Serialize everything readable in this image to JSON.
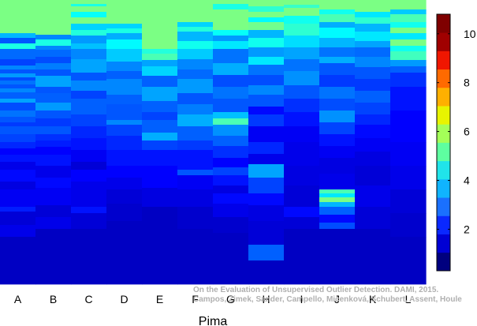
{
  "chart_data": {
    "type": "heatmap",
    "xlabel": "Pima",
    "columns": [
      "A",
      "B",
      "C",
      "D",
      "E",
      "F",
      "G",
      "H",
      "I",
      "J",
      "K",
      "L"
    ],
    "value_range": [
      0.3,
      10.8
    ],
    "colorbar": {
      "ticks": [
        2,
        4,
        6,
        8,
        10
      ],
      "colors": [
        "#00007f",
        "#0000d4",
        "#0a28ff",
        "#1a70ff",
        "#10b4ff",
        "#20e4ea",
        "#5effa0",
        "#a4ff58",
        "#e8f400",
        "#ffb000",
        "#ff6a00",
        "#f01600",
        "#a00000",
        "#7f0000"
      ]
    },
    "columns_data": [
      [
        [
          0,
          42,
          5.5
        ],
        [
          42,
          48,
          3.5
        ],
        [
          48,
          55,
          2.5
        ],
        [
          55,
          62,
          4.5
        ],
        [
          62,
          75,
          2.7
        ],
        [
          75,
          83,
          2.3
        ],
        [
          83,
          88,
          3.0
        ],
        [
          88,
          93,
          2.5
        ],
        [
          93,
          98,
          3.2
        ],
        [
          98,
          102,
          2.4
        ],
        [
          102,
          107,
          2.8
        ],
        [
          107,
          112,
          2.5
        ],
        [
          112,
          117,
          3.0
        ],
        [
          117,
          125,
          2.6
        ],
        [
          125,
          130,
          3.3
        ],
        [
          130,
          140,
          2.4
        ],
        [
          140,
          148,
          2.8
        ],
        [
          148,
          155,
          2.5
        ],
        [
          155,
          160,
          2.2
        ],
        [
          160,
          170,
          2.5
        ],
        [
          170,
          180,
          2.3
        ],
        [
          180,
          188,
          2.0
        ],
        [
          188,
          196,
          1.6
        ],
        [
          196,
          205,
          1.8
        ],
        [
          205,
          215,
          1.4
        ],
        [
          215,
          230,
          1.7
        ],
        [
          230,
          240,
          1.3
        ],
        [
          240,
          262,
          1.5
        ],
        [
          262,
          268,
          1.9
        ],
        [
          268,
          285,
          1.2
        ],
        [
          285,
          300,
          1.4
        ],
        [
          300,
          360,
          1.0
        ]
      ],
      [
        [
          0,
          44,
          5.5
        ],
        [
          44,
          50,
          3.0
        ],
        [
          50,
          58,
          4.5
        ],
        [
          58,
          63,
          3.0
        ],
        [
          63,
          72,
          2.7
        ],
        [
          72,
          80,
          2.4
        ],
        [
          80,
          88,
          2.9
        ],
        [
          88,
          96,
          2.5
        ],
        [
          96,
          110,
          3.3
        ],
        [
          110,
          118,
          2.5
        ],
        [
          118,
          130,
          2.6
        ],
        [
          130,
          140,
          3.2
        ],
        [
          140,
          150,
          2.5
        ],
        [
          150,
          160,
          2.2
        ],
        [
          160,
          170,
          2.5
        ],
        [
          170,
          178,
          2.1
        ],
        [
          178,
          186,
          1.9
        ],
        [
          186,
          196,
          1.6
        ],
        [
          196,
          210,
          1.8
        ],
        [
          210,
          225,
          1.4
        ],
        [
          225,
          238,
          1.7
        ],
        [
          238,
          260,
          1.5
        ],
        [
          260,
          275,
          1.2
        ],
        [
          275,
          290,
          1.4
        ],
        [
          290,
          360,
          1.0
        ]
      ],
      [
        [
          0,
          5,
          5.5
        ],
        [
          5,
          8,
          4.5
        ],
        [
          8,
          15,
          5.5
        ],
        [
          15,
          22,
          4.3
        ],
        [
          22,
          30,
          5.5
        ],
        [
          30,
          38,
          3.8
        ],
        [
          38,
          45,
          4.6
        ],
        [
          45,
          55,
          3.2
        ],
        [
          55,
          62,
          3.6
        ],
        [
          62,
          75,
          3.0
        ],
        [
          75,
          92,
          3.3
        ],
        [
          92,
          102,
          2.5
        ],
        [
          102,
          115,
          3.0
        ],
        [
          115,
          125,
          2.3
        ],
        [
          125,
          145,
          2.6
        ],
        [
          145,
          160,
          2.3
        ],
        [
          160,
          175,
          2.0
        ],
        [
          175,
          190,
          1.8
        ],
        [
          190,
          205,
          1.5
        ],
        [
          205,
          215,
          1.2
        ],
        [
          215,
          230,
          1.6
        ],
        [
          230,
          262,
          1.4
        ],
        [
          262,
          270,
          1.8
        ],
        [
          270,
          290,
          1.2
        ],
        [
          290,
          360,
          1.0
        ]
      ],
      [
        [
          0,
          30,
          5.5
        ],
        [
          30,
          36,
          3.8
        ],
        [
          36,
          42,
          4.5
        ],
        [
          42,
          50,
          3.4
        ],
        [
          50,
          62,
          4.2
        ],
        [
          62,
          78,
          3.7
        ],
        [
          78,
          90,
          3.0
        ],
        [
          90,
          100,
          2.6
        ],
        [
          100,
          120,
          3.0
        ],
        [
          120,
          132,
          2.6
        ],
        [
          132,
          152,
          2.5
        ],
        [
          152,
          158,
          3.0
        ],
        [
          158,
          172,
          2.3
        ],
        [
          172,
          190,
          2.0
        ],
        [
          190,
          210,
          1.8
        ],
        [
          210,
          225,
          1.6
        ],
        [
          225,
          240,
          1.4
        ],
        [
          240,
          258,
          1.2
        ],
        [
          258,
          280,
          1.1
        ],
        [
          280,
          360,
          1.0
        ]
      ],
      [
        [
          0,
          62,
          5.5
        ],
        [
          62,
          68,
          4.6
        ],
        [
          68,
          76,
          5.0
        ],
        [
          76,
          84,
          3.3
        ],
        [
          84,
          96,
          3.8
        ],
        [
          96,
          110,
          2.6
        ],
        [
          110,
          128,
          3.3
        ],
        [
          128,
          142,
          2.6
        ],
        [
          142,
          152,
          2.3
        ],
        [
          152,
          168,
          2.6
        ],
        [
          168,
          178,
          3.4
        ],
        [
          178,
          190,
          2.3
        ],
        [
          190,
          210,
          1.8
        ],
        [
          210,
          238,
          1.6
        ],
        [
          238,
          262,
          1.3
        ],
        [
          262,
          360,
          1.0
        ]
      ],
      [
        [
          0,
          28,
          5.5
        ],
        [
          28,
          34,
          3.8
        ],
        [
          34,
          40,
          4.6
        ],
        [
          40,
          52,
          3.5
        ],
        [
          52,
          62,
          4.4
        ],
        [
          62,
          75,
          3.7
        ],
        [
          75,
          88,
          3.0
        ],
        [
          88,
          100,
          2.7
        ],
        [
          100,
          118,
          3.2
        ],
        [
          118,
          132,
          2.5
        ],
        [
          132,
          145,
          2.9
        ],
        [
          145,
          160,
          3.4
        ],
        [
          160,
          178,
          2.6
        ],
        [
          178,
          190,
          2.2
        ],
        [
          190,
          215,
          1.8
        ],
        [
          215,
          222,
          2.5
        ],
        [
          222,
          240,
          1.5
        ],
        [
          240,
          262,
          1.3
        ],
        [
          262,
          290,
          1.1
        ],
        [
          290,
          360,
          1.0
        ]
      ],
      [
        [
          0,
          5,
          5.5
        ],
        [
          5,
          12,
          4.5
        ],
        [
          12,
          38,
          5.5
        ],
        [
          38,
          45,
          4.3
        ],
        [
          45,
          52,
          3.2
        ],
        [
          52,
          62,
          4.0
        ],
        [
          62,
          80,
          2.8
        ],
        [
          80,
          95,
          3.4
        ],
        [
          95,
          110,
          2.4
        ],
        [
          110,
          125,
          2.8
        ],
        [
          125,
          142,
          2.5
        ],
        [
          142,
          150,
          3.6
        ],
        [
          150,
          158,
          5.0
        ],
        [
          158,
          172,
          3.1
        ],
        [
          172,
          185,
          2.6
        ],
        [
          185,
          200,
          2.1
        ],
        [
          200,
          212,
          1.6
        ],
        [
          212,
          222,
          2.3
        ],
        [
          222,
          235,
          1.8
        ],
        [
          235,
          245,
          1.3
        ],
        [
          245,
          258,
          1.7
        ],
        [
          258,
          275,
          1.4
        ],
        [
          275,
          295,
          1.1
        ],
        [
          295,
          360,
          1.0
        ]
      ],
      [
        [
          0,
          8,
          5.5
        ],
        [
          8,
          15,
          4.7
        ],
        [
          15,
          22,
          5.5
        ],
        [
          22,
          28,
          4.2
        ],
        [
          28,
          38,
          5.4
        ],
        [
          38,
          48,
          3.5
        ],
        [
          48,
          60,
          4.4
        ],
        [
          60,
          72,
          3.2
        ],
        [
          72,
          82,
          4.0
        ],
        [
          82,
          95,
          2.8
        ],
        [
          95,
          108,
          2.4
        ],
        [
          108,
          120,
          3.0
        ],
        [
          120,
          135,
          2.5
        ],
        [
          135,
          145,
          1.7
        ],
        [
          145,
          160,
          2.2
        ],
        [
          160,
          180,
          1.5
        ],
        [
          180,
          195,
          2.0
        ],
        [
          195,
          208,
          1.4
        ],
        [
          208,
          225,
          3.3
        ],
        [
          225,
          245,
          2.3
        ],
        [
          245,
          260,
          1.7
        ],
        [
          260,
          280,
          1.3
        ],
        [
          280,
          310,
          1.2
        ],
        [
          310,
          330,
          2.6
        ],
        [
          330,
          360,
          1.0
        ]
      ],
      [
        [
          0,
          6,
          5.5
        ],
        [
          6,
          10,
          4.8
        ],
        [
          10,
          20,
          5.5
        ],
        [
          20,
          30,
          4.4
        ],
        [
          30,
          45,
          4.7
        ],
        [
          45,
          60,
          3.9
        ],
        [
          60,
          75,
          3.3
        ],
        [
          75,
          90,
          2.8
        ],
        [
          90,
          108,
          3.1
        ],
        [
          108,
          125,
          2.5
        ],
        [
          125,
          142,
          2.1
        ],
        [
          142,
          160,
          1.8
        ],
        [
          160,
          180,
          1.5
        ],
        [
          180,
          210,
          1.4
        ],
        [
          210,
          235,
          1.3
        ],
        [
          235,
          262,
          1.2
        ],
        [
          262,
          275,
          1.7
        ],
        [
          275,
          290,
          1.2
        ],
        [
          290,
          360,
          1.0
        ]
      ],
      [
        [
          0,
          12,
          5.5
        ],
        [
          12,
          18,
          4.4
        ],
        [
          18,
          28,
          5.0
        ],
        [
          28,
          35,
          3.4
        ],
        [
          35,
          48,
          4.2
        ],
        [
          48,
          60,
          3.5
        ],
        [
          60,
          72,
          2.8
        ],
        [
          72,
          80,
          3.4
        ],
        [
          80,
          95,
          2.5
        ],
        [
          95,
          110,
          2.2
        ],
        [
          110,
          125,
          2.8
        ],
        [
          125,
          140,
          2.4
        ],
        [
          140,
          155,
          3.1
        ],
        [
          155,
          170,
          2.3
        ],
        [
          170,
          185,
          1.8
        ],
        [
          185,
          200,
          1.5
        ],
        [
          200,
          220,
          1.3
        ],
        [
          220,
          240,
          1.4
        ],
        [
          240,
          245,
          5.0
        ],
        [
          245,
          250,
          4.0
        ],
        [
          250,
          256,
          5.5
        ],
        [
          256,
          262,
          3.5
        ],
        [
          262,
          272,
          2.6
        ],
        [
          272,
          282,
          1.7
        ],
        [
          282,
          290,
          2.4
        ],
        [
          290,
          360,
          1.0
        ]
      ],
      [
        [
          0,
          15,
          5.5
        ],
        [
          15,
          22,
          4.0
        ],
        [
          22,
          30,
          4.7
        ],
        [
          30,
          40,
          3.5
        ],
        [
          40,
          52,
          4.0
        ],
        [
          52,
          60,
          3.3
        ],
        [
          60,
          72,
          2.7
        ],
        [
          72,
          85,
          3.0
        ],
        [
          85,
          100,
          2.5
        ],
        [
          100,
          115,
          2.2
        ],
        [
          115,
          130,
          2.6
        ],
        [
          130,
          145,
          2.3
        ],
        [
          145,
          158,
          2.0
        ],
        [
          158,
          175,
          1.7
        ],
        [
          175,
          192,
          1.5
        ],
        [
          192,
          210,
          1.3
        ],
        [
          210,
          235,
          1.2
        ],
        [
          235,
          262,
          1.4
        ],
        [
          262,
          290,
          1.2
        ],
        [
          290,
          360,
          1.0
        ]
      ],
      [
        [
          0,
          12,
          5.5
        ],
        [
          12,
          18,
          3.7
        ],
        [
          18,
          28,
          5.0
        ],
        [
          28,
          35,
          4.4
        ],
        [
          35,
          42,
          5.5
        ],
        [
          42,
          50,
          4.0
        ],
        [
          50,
          58,
          5.5
        ],
        [
          58,
          65,
          4.4
        ],
        [
          65,
          76,
          4.9
        ],
        [
          76,
          84,
          3.2
        ],
        [
          84,
          92,
          2.6
        ],
        [
          92,
          110,
          2.1
        ],
        [
          110,
          140,
          1.8
        ],
        [
          140,
          180,
          1.6
        ],
        [
          180,
          210,
          1.5
        ],
        [
          210,
          240,
          1.4
        ],
        [
          240,
          270,
          1.2
        ],
        [
          270,
          300,
          1.1
        ],
        [
          300,
          360,
          1.0
        ]
      ]
    ],
    "credit_lines": [
      "On the Evaluation of Unsupervised Outlier Detection. DAMI, 2015.",
      "Campos, Zimek, Sander, Campello, Micenková, Schubert, Assent, Houle"
    ]
  }
}
